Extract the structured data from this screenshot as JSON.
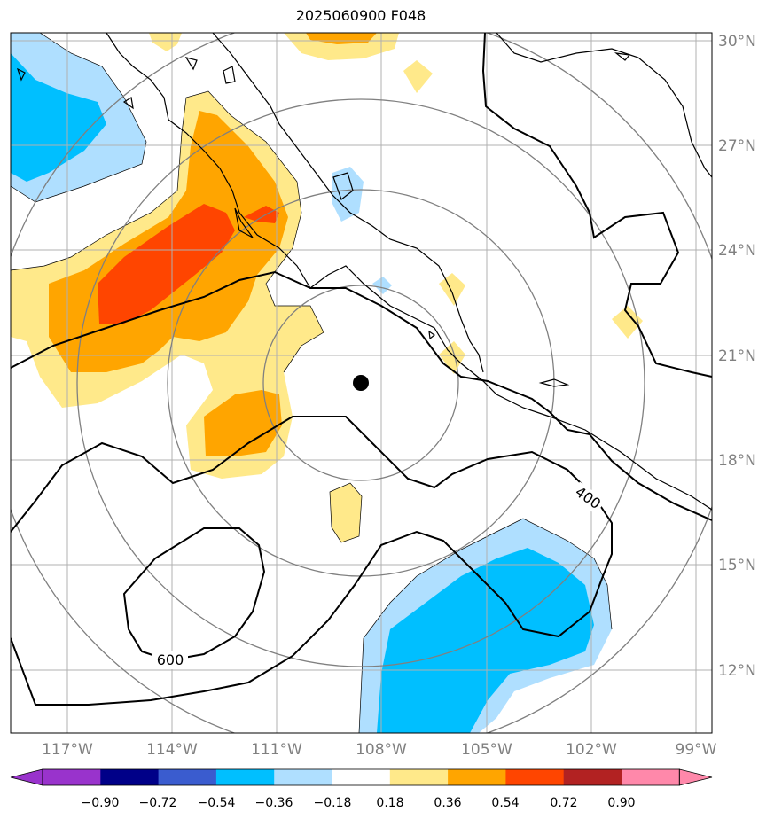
{
  "title": "2025060900 F048",
  "axes": {
    "lon_labels": [
      "117°W",
      "114°W",
      "111°W",
      "108°W",
      "105°W",
      "102°W",
      "99°W"
    ],
    "lat_labels": [
      "30°N",
      "27°N",
      "24°N",
      "21°N",
      "18°N",
      "15°N",
      "12°N"
    ]
  },
  "contour_labels": [
    "400",
    "600"
  ],
  "colorbar": {
    "ticks": [
      "−0.90",
      "−0.72",
      "−0.54",
      "−0.36",
      "−0.18",
      "0.18",
      "0.36",
      "0.54",
      "0.72",
      "0.90"
    ],
    "colors": [
      "#9933cc",
      "#000088",
      "#3a5ccf",
      "#00bfff",
      "#afdfff",
      "#ffffff",
      "#ffe98a",
      "#ffa500",
      "#ff4500",
      "#b22222",
      "#ff88aa"
    ]
  },
  "palette": {
    "blue_light": "#afdfff",
    "blue": "#00bfff",
    "yellow": "#ffe98a",
    "orange": "#ffa500",
    "red": "#ff4500",
    "range_ring": "#808080",
    "grid": "#b0b0b0",
    "axis_label": "#808080"
  },
  "marker": "storm-center-dot"
}
